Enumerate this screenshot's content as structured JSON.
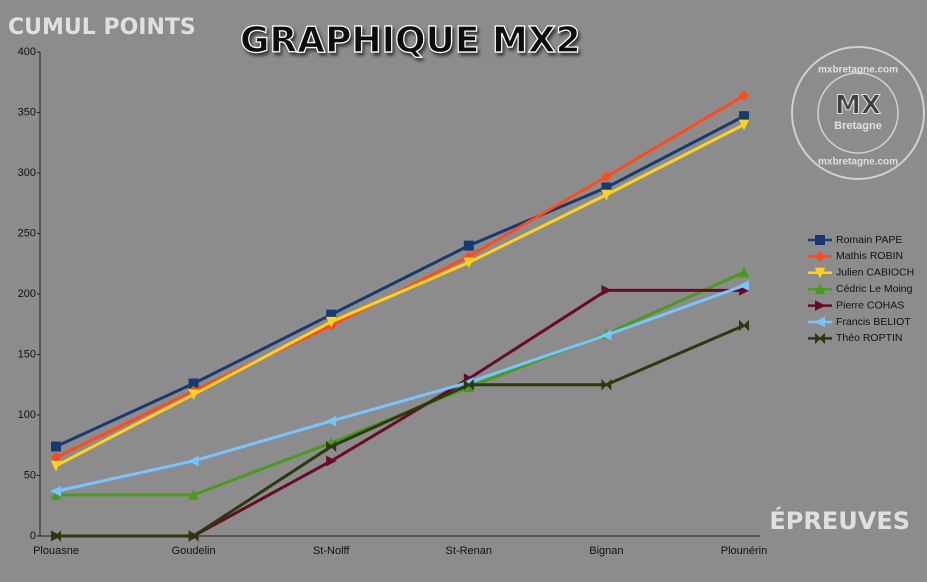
{
  "chart_data": {
    "type": "line",
    "title": "GRAPHIQUE MX2",
    "y_axis_title": "CUMUL POINTS",
    "x_axis_title": "ÉPREUVES",
    "watermark": "mxbretagne.com",
    "logo": [
      "MX",
      "Bretagne"
    ],
    "categories": [
      "Plouasne",
      "Goudelin",
      "St-Nolff",
      "St-Renan",
      "Bignan",
      "Plounérin"
    ],
    "ylim": [
      0,
      400
    ],
    "yticks": [
      0,
      50,
      100,
      150,
      200,
      250,
      300,
      350,
      400
    ],
    "grid": false,
    "legend": "right",
    "series": [
      {
        "name": "Romain PAPE",
        "color": "#173a72",
        "marker": "square",
        "values": [
          74,
          126,
          183,
          240,
          288,
          347
        ]
      },
      {
        "name": "Mathis ROBIN",
        "color": "#ff4a1c",
        "marker": "diamond",
        "values": [
          65,
          120,
          174,
          231,
          297,
          364
        ]
      },
      {
        "name": "Julien CABIOCH",
        "color": "#ffd21e",
        "marker": "down",
        "values": [
          58,
          117,
          177,
          226,
          282,
          340
        ]
      },
      {
        "name": "Cédric Le Moing",
        "color": "#4a9a1e",
        "marker": "up",
        "values": [
          34,
          34,
          77,
          123,
          167,
          218
        ]
      },
      {
        "name": "Pierre COHAS",
        "color": "#6a0a28",
        "marker": "right",
        "values": [
          0,
          0,
          62,
          130,
          203,
          203
        ]
      },
      {
        "name": "Francis BELIOT",
        "color": "#78c4ff",
        "marker": "left",
        "values": [
          37,
          62,
          95,
          127,
          166,
          207
        ]
      },
      {
        "name": "Théo ROPTIN",
        "color": "#2a3a0e",
        "marker": "bowtie",
        "values": [
          0,
          0,
          74,
          125,
          125,
          174
        ]
      }
    ]
  }
}
